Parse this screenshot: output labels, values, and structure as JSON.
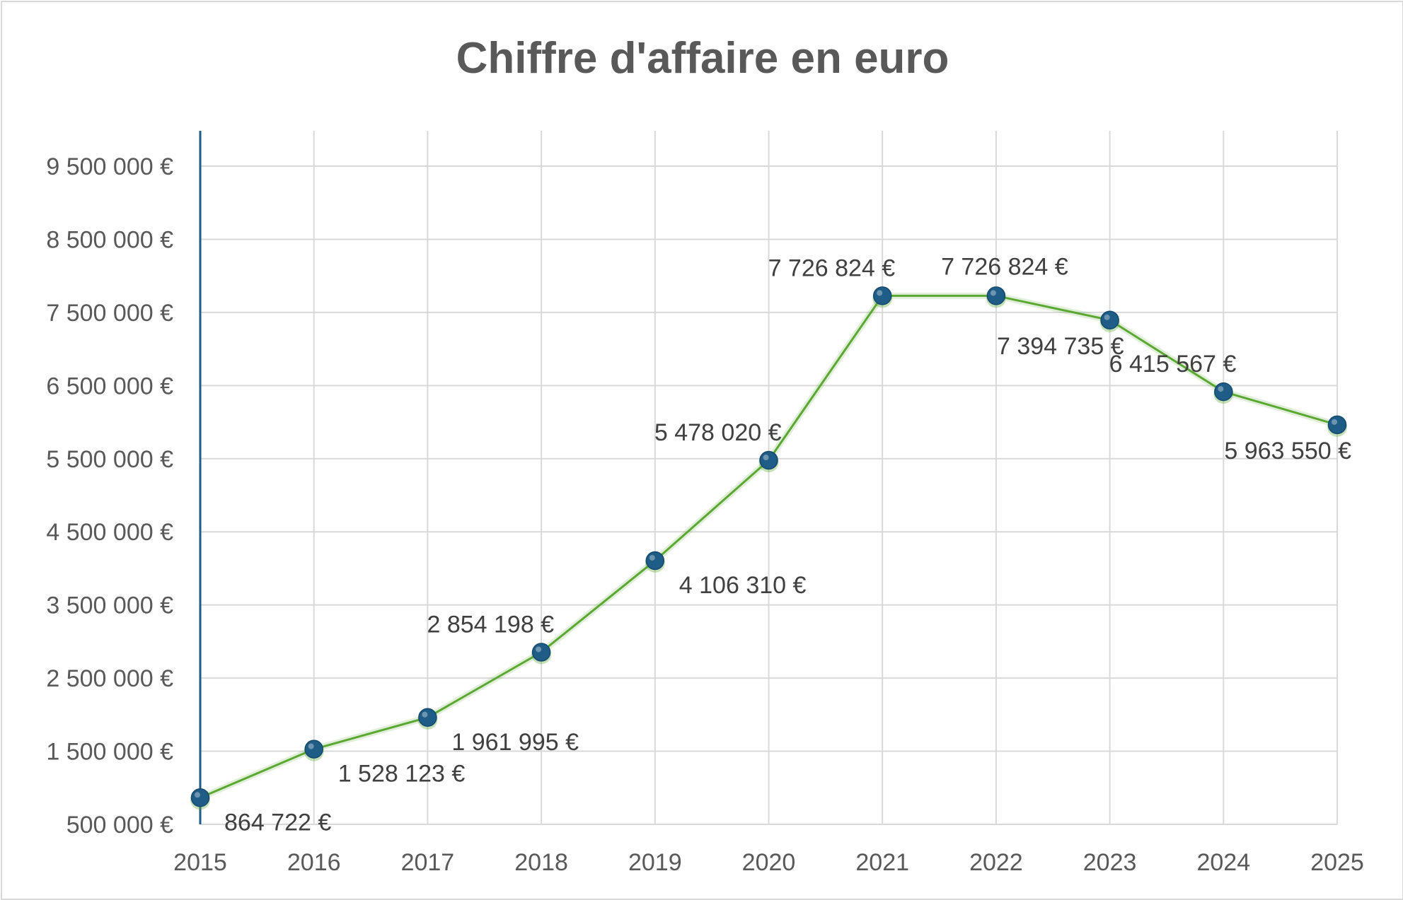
{
  "chart_data": {
    "type": "line",
    "title": "Chiffre d'affaire en euro",
    "xlabel": "",
    "ylabel": "",
    "categories": [
      "2015",
      "2016",
      "2017",
      "2018",
      "2019",
      "2020",
      "2021",
      "2022",
      "2023",
      "2024",
      "2025"
    ],
    "series": [
      {
        "values": [
          864722,
          1528123,
          1961995,
          2854198,
          4106310,
          5478020,
          7726824,
          7726824,
          7394735,
          6415567,
          5963550
        ],
        "data_labels": [
          "864 722 €",
          "1 528 123 €",
          "1 961 995 €",
          "2 854 198 €",
          "4 106 310 €",
          "5 478 020 €",
          "7 726 824 €",
          "7 726 824 €",
          "7 394 735 €",
          "6 415 567 €",
          "5 963 550 €"
        ],
        "label_positions": [
          "below-right",
          "below-right",
          "below-right",
          "above-left",
          "below-right",
          "above-left",
          "above-left",
          "above",
          "below-left",
          "above-left",
          "below-left"
        ],
        "line_color": "#5aa832",
        "marker_color": "#1f5c86"
      }
    ],
    "ylim": [
      500000,
      9500000
    ],
    "y_ticks": [
      500000,
      1500000,
      2500000,
      3500000,
      4500000,
      5500000,
      6500000,
      7500000,
      8500000,
      9500000
    ],
    "y_tick_labels": [
      "500 000 €",
      "1 500 000 €",
      "2 500 000 €",
      "3 500 000 €",
      "4 500 000 €",
      "5 500 000 €",
      "6 500 000 €",
      "7 500 000 €",
      "8 500 000 €",
      "9 500 000 €"
    ],
    "grid": true,
    "legend": "none",
    "colors": {
      "grid": "#d9d9d9",
      "axis": "#1f5c86",
      "text": "#595959"
    }
  }
}
